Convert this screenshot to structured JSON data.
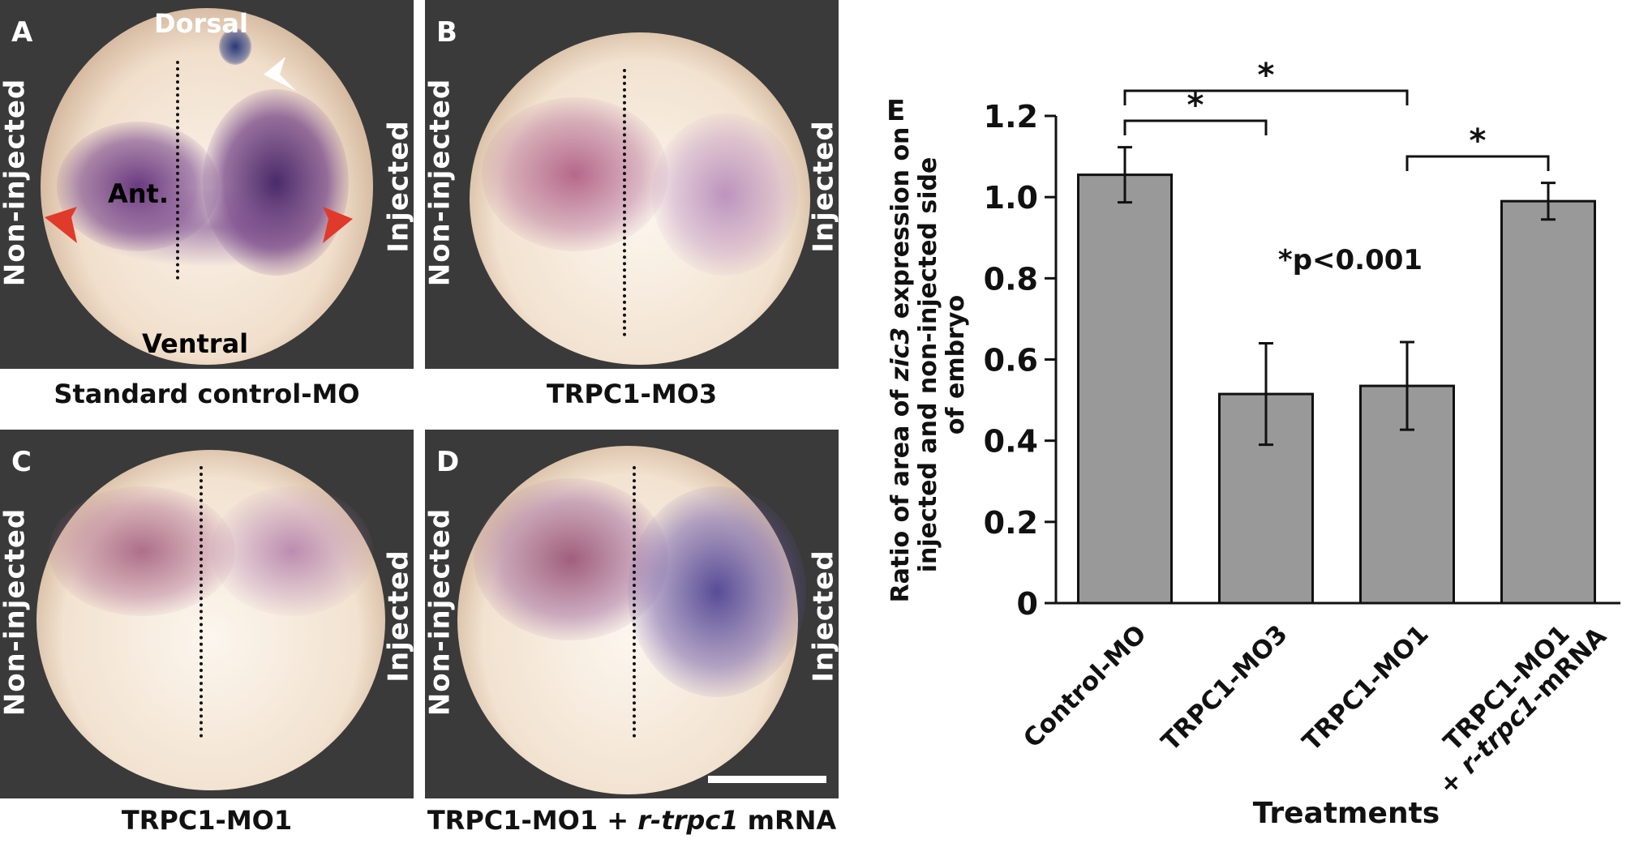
{
  "panels": [
    {
      "letter": "A",
      "left_label": "Non-injected",
      "right_label": "Injected",
      "caption": "Standard control-MO",
      "top_label": "Dorsal",
      "bottom_label": "Ventral",
      "center_label": "Ant."
    },
    {
      "letter": "B",
      "left_label": "Non-injected",
      "right_label": "Injected",
      "caption": "TRPC1-MO3"
    },
    {
      "letter": "C",
      "left_label": "Non-injected",
      "right_label": "Injected",
      "caption": "TRPC1-MO1"
    },
    {
      "letter": "D",
      "left_label": "Non-injected",
      "right_label": "Injected",
      "caption_main": "TRPC1-MO1 + ",
      "caption_italic": "r-trpc1",
      "caption_end": " mRNA"
    }
  ],
  "chart_data": {
    "type": "bar",
    "panel_letter": "E",
    "categories": [
      "Control-MO",
      "TRPC1-MO3",
      "TRPC1-MO1",
      "TRPC1-MO1 + r-trpc1-mRNA"
    ],
    "category_lines": [
      [
        "Control-MO"
      ],
      [
        "TRPC1-MO3"
      ],
      [
        "TRPC1-MO1"
      ],
      [
        "TRPC1-MO1",
        "+ r-trpc1-mRNA"
      ]
    ],
    "values": [
      1.055,
      0.515,
      0.535,
      0.99
    ],
    "errors": [
      0.068,
      0.125,
      0.108,
      0.045
    ],
    "ylabel_line1_pre": "Ratio of area of ",
    "ylabel_line1_italic": "zic3",
    "ylabel_line1_post": " expression on",
    "ylabel_line2": "injected and non-injected  side",
    "ylabel_line3": "of embryo",
    "xlabel": "Treatments",
    "ylim": [
      0,
      1.2
    ],
    "yticks": [
      0,
      0.2,
      0.4,
      0.6,
      0.8,
      1.0,
      1.2
    ],
    "ytick_labels": [
      "0",
      "0.2",
      "0.4",
      "0.6",
      "0.8",
      "1.0",
      "1.2"
    ],
    "bar_color": "#999999",
    "annotation": "*p<0.001",
    "significance": [
      {
        "from": 0,
        "to": 2,
        "label": "*"
      },
      {
        "from": 0,
        "to": 1,
        "label": "*"
      },
      {
        "from": 2,
        "to": 3,
        "label": "*"
      }
    ],
    "grid": false
  }
}
